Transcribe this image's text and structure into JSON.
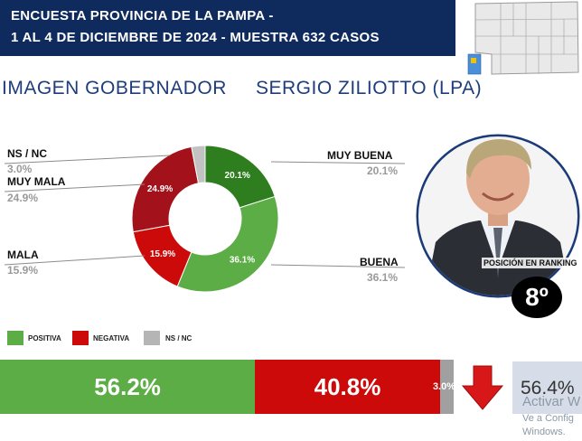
{
  "header": {
    "line1": "ENCUESTA PROVINCIA DE LA PAMPA -",
    "line2": "1 AL 4 DE DICIEMBRE DE 2024 - MUESTRA 632 CASOS",
    "bg_color": "#0f2a5c"
  },
  "subtitle": {
    "left": "IMAGEN GOBERNADOR",
    "right": "SERGIO ZILIOTTO (LPA)"
  },
  "chart_data": {
    "type": "pie",
    "variant": "donut",
    "slices": [
      {
        "name": "MUY BUENA",
        "value": 20.1,
        "label": "20.1%",
        "color": "#2e7d1e"
      },
      {
        "name": "BUENA",
        "value": 36.1,
        "label": "36.1%",
        "color": "#5cad45"
      },
      {
        "name": "MALA",
        "value": 15.9,
        "label": "15.9%",
        "color": "#cc0a0a"
      },
      {
        "name": "MUY MALA",
        "value": 24.9,
        "label": "24.9%",
        "color": "#a3121a"
      },
      {
        "name": "NS / NC",
        "value": 3.0,
        "label": "3.0%",
        "color": "#c2c2c2"
      }
    ]
  },
  "callouts": {
    "muy_buena": {
      "name": "MUY BUENA",
      "pct": "20.1%"
    },
    "buena": {
      "name": "BUENA",
      "pct": "36.1%"
    },
    "mala": {
      "name": "MALA",
      "pct": "15.9%"
    },
    "muy_mala": {
      "name": "MUY MALA",
      "pct": "24.9%"
    },
    "nsnc": {
      "name": "NS / NC",
      "pct": "3.0%"
    }
  },
  "legend": {
    "positiva": {
      "label": "POSITIVA",
      "color": "#5cad45"
    },
    "negativa": {
      "label": "NEGATIVA",
      "color": "#cc0a0a"
    },
    "nsnc": {
      "label": "NS / NC",
      "color": "#b5b5b5"
    }
  },
  "summary_bar": {
    "positiva": {
      "value": 56.2,
      "label": "56.2%",
      "color": "#5cad45"
    },
    "negativa": {
      "value": 40.8,
      "label": "40.8%",
      "color": "#cc0a0a"
    },
    "nsnc": {
      "value": 3.0,
      "label": "3.0%",
      "color": "#a0a0a0"
    }
  },
  "ranking": {
    "label": "POSICIÓN EN RANKING",
    "value": "8º"
  },
  "approval": {
    "value": "56.4%",
    "trend": "down-arrow-icon",
    "arrow_color": "#d81818"
  },
  "watermark": {
    "line1": "Activar W",
    "line2": "Ve a Config",
    "line3": "Windows."
  }
}
